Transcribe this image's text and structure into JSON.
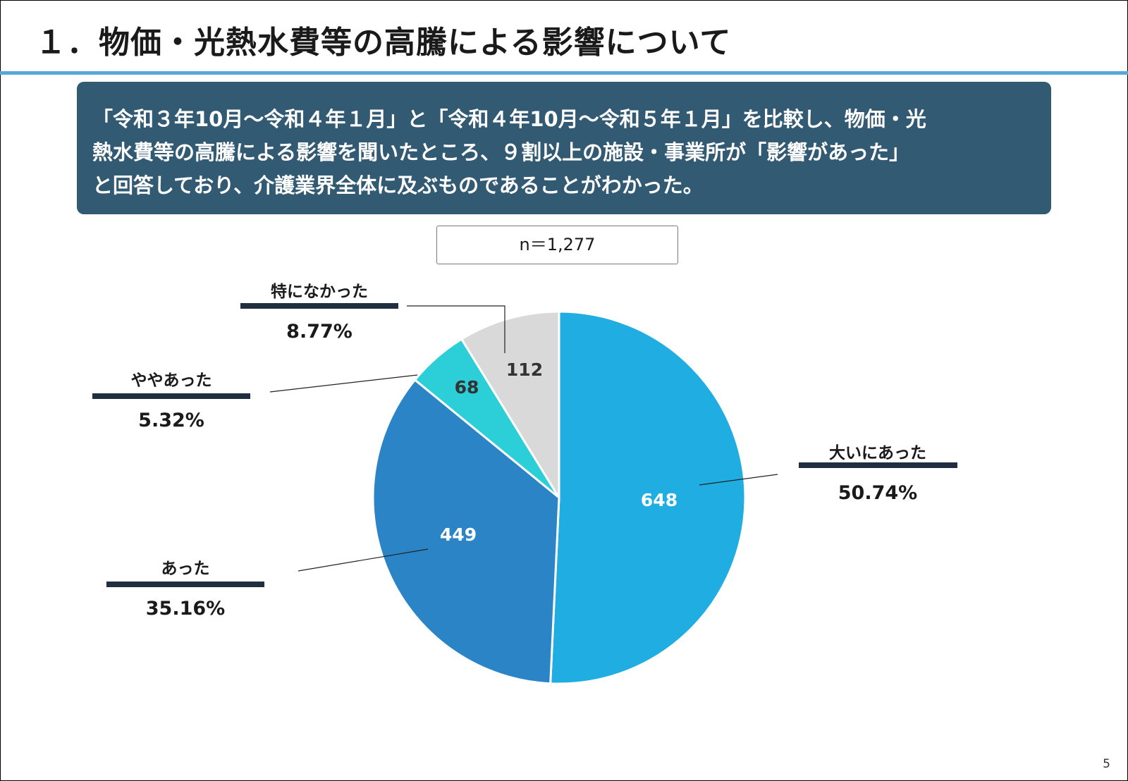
{
  "slide": {
    "title": "１．物価・光熱水費等の高騰による影響について",
    "summary_lines": [
      "「令和３年10月～令和４年１月」と「令和４年10月～令和５年１月」を比較し、物価・光",
      "熱水費等の高騰による影響を聞いたところ、９割以上の施設・事業所が「影響があった」",
      "と回答しており、介護業界全体に及ぶものであることがわかった。"
    ],
    "page_number": "5"
  },
  "colors": {
    "title_rule": "#5aa6d6",
    "summary_bg": "#335a73",
    "label_bar": "#1f2f3f"
  },
  "chart_data": {
    "type": "pie",
    "n_label": "n＝1,277",
    "start": "12 o'clock",
    "direction": "clockwise",
    "slices": [
      {
        "name": "大いにあった",
        "value": 648,
        "percent": "50.74%",
        "color": "#1fade2"
      },
      {
        "name": "あった",
        "value": 449,
        "percent": "35.16%",
        "color": "#2a84c6"
      },
      {
        "name": "ややあった",
        "value": 68,
        "percent": "5.32%",
        "color": "#2ccfd8"
      },
      {
        "name": "特になかった",
        "value": 112,
        "percent": "8.77%",
        "color": "#d9d9d9"
      }
    ]
  }
}
